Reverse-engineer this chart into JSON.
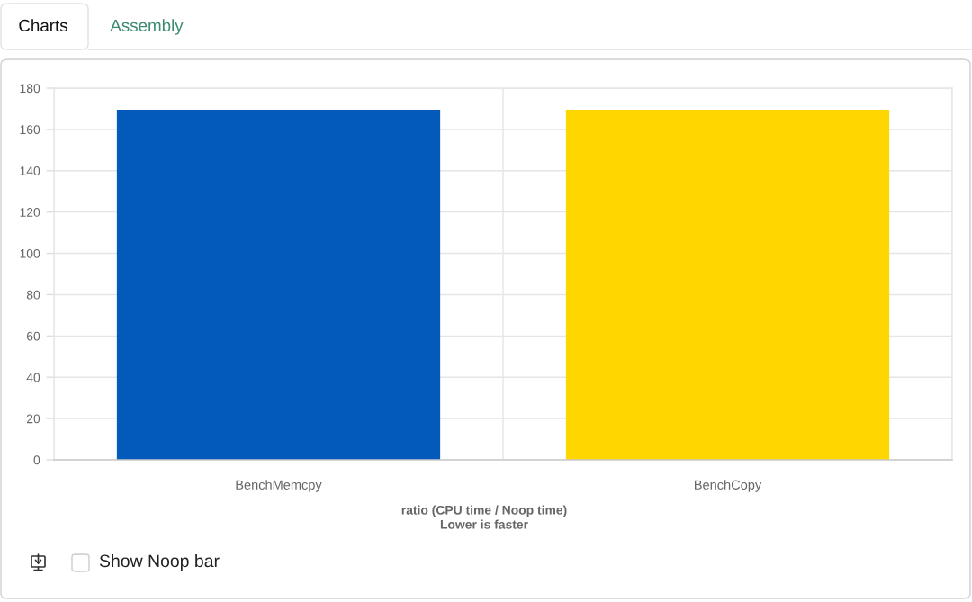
{
  "chart_data": {
    "type": "bar",
    "categories": [
      "BenchMemcpy",
      "BenchCopy"
    ],
    "values": [
      169.5,
      169.5
    ],
    "colors": [
      "#035abb",
      "#ffd600"
    ],
    "xlabel": "ratio (CPU time / Noop time)\nLower is faster",
    "ylim": [
      0,
      180
    ],
    "yticks": [
      0,
      20,
      40,
      60,
      80,
      100,
      120,
      140,
      160,
      180
    ],
    "grid": true,
    "annotations": [
      "Charts",
      "Assembly",
      "Show Noop bar"
    ]
  }
}
